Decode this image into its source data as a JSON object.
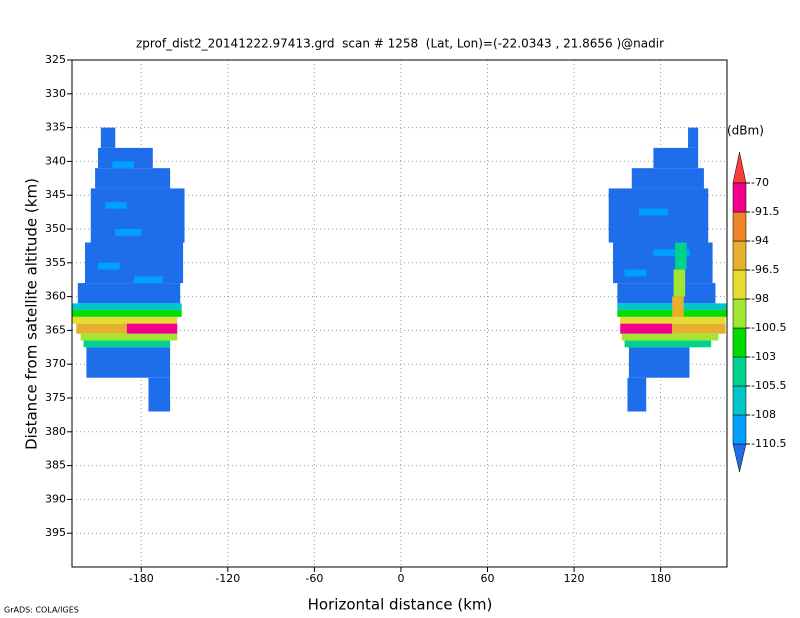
{
  "chart_data": {
    "type": "heatmap",
    "title": "zprof_dist2_20141222.97413.grd  scan # 1258  (Lat, Lon)=(-22.0343 , 21.8656 )@nadir",
    "x_label": "Horizontal distance (km)",
    "y_label": "Distance from satellite altitude (km)",
    "footer": "GrADS: COLA/IGES",
    "colorbar_label": "(dBm)",
    "xlim": [
      -228,
      226
    ],
    "xticks": [
      -180,
      -120,
      -60,
      0,
      60,
      120,
      180
    ],
    "ylim": [
      325,
      400
    ],
    "y_inverted": true,
    "yticks": [
      325,
      330,
      335,
      340,
      345,
      350,
      355,
      360,
      365,
      370,
      375,
      380,
      385,
      390,
      395
    ],
    "grid": true,
    "levels": [
      -110.5,
      -108,
      -105.5,
      -103,
      -100.5,
      -98,
      -96.5,
      -94,
      -91.5,
      -70
    ],
    "colors": [
      "#1e6eeb",
      "#00a0ff",
      "#00c8c8",
      "#00d28c",
      "#00dc00",
      "#a0e632",
      "#e6dc32",
      "#e6af2d",
      "#f08228",
      "#f0008c",
      "#fa3c3c"
    ],
    "cells": [
      {
        "x0": -208,
        "x1": -198,
        "y0": 335,
        "y1": 338,
        "value": -112
      },
      {
        "x0": -210,
        "x1": -172,
        "y0": 338,
        "y1": 341,
        "value": -112
      },
      {
        "x0": -212,
        "x1": -160,
        "y0": 341,
        "y1": 344,
        "value": -112
      },
      {
        "x0": -215,
        "x1": -150,
        "y0": 344,
        "y1": 352,
        "value": -112
      },
      {
        "x0": -219,
        "x1": -151,
        "y0": 352,
        "y1": 358,
        "value": -112
      },
      {
        "x0": -224,
        "x1": -153,
        "y0": 358,
        "y1": 361,
        "value": -112
      },
      {
        "x0": -205,
        "x1": -190,
        "y0": 346,
        "y1": 347,
        "value": -109
      },
      {
        "x0": -198,
        "x1": -180,
        "y0": 350,
        "y1": 351,
        "value": -109
      },
      {
        "x0": -210,
        "x1": -195,
        "y0": 355,
        "y1": 356,
        "value": -109
      },
      {
        "x0": -185,
        "x1": -165,
        "y0": 357,
        "y1": 358,
        "value": -109
      },
      {
        "x0": -200,
        "x1": -185,
        "y0": 340,
        "y1": 341,
        "value": -109
      },
      {
        "x0": -228,
        "x1": -152,
        "y0": 361,
        "y1": 362,
        "value": -107
      },
      {
        "x0": -228,
        "x1": -152,
        "y0": 362,
        "y1": 363,
        "value": -102
      },
      {
        "x0": -228,
        "x1": -155,
        "y0": 363,
        "y1": 364,
        "value": -97
      },
      {
        "x0": -225,
        "x1": -190,
        "y0": 364,
        "y1": 365.5,
        "value": -95
      },
      {
        "x0": -190,
        "x1": -155,
        "y0": 364,
        "y1": 365.5,
        "value": -85
      },
      {
        "x0": -222,
        "x1": -155,
        "y0": 365.5,
        "y1": 366.5,
        "value": -99
      },
      {
        "x0": -220,
        "x1": -160,
        "y0": 366.5,
        "y1": 367.5,
        "value": -104
      },
      {
        "x0": -218,
        "x1": -160,
        "y0": 367.5,
        "y1": 372,
        "value": -112
      },
      {
        "x0": -175,
        "x1": -160,
        "y0": 372,
        "y1": 377,
        "value": -112
      },
      {
        "x0": 199,
        "x1": 206,
        "y0": 335,
        "y1": 338,
        "value": -112
      },
      {
        "x0": 175,
        "x1": 206,
        "y0": 338,
        "y1": 341,
        "value": -112
      },
      {
        "x0": 160,
        "x1": 210,
        "y0": 341,
        "y1": 344,
        "value": -112
      },
      {
        "x0": 144,
        "x1": 213,
        "y0": 344,
        "y1": 352,
        "value": -112
      },
      {
        "x0": 147,
        "x1": 216,
        "y0": 352,
        "y1": 358,
        "value": -112
      },
      {
        "x0": 150,
        "x1": 218,
        "y0": 358,
        "y1": 361,
        "value": -112
      },
      {
        "x0": 165,
        "x1": 185,
        "y0": 347,
        "y1": 348,
        "value": -109
      },
      {
        "x0": 175,
        "x1": 200,
        "y0": 353,
        "y1": 354,
        "value": -109
      },
      {
        "x0": 155,
        "x1": 170,
        "y0": 356,
        "y1": 357,
        "value": -109
      },
      {
        "x0": 150,
        "x1": 226,
        "y0": 361,
        "y1": 362,
        "value": -107
      },
      {
        "x0": 150,
        "x1": 226,
        "y0": 362,
        "y1": 363,
        "value": -102
      },
      {
        "x0": 152,
        "x1": 225,
        "y0": 363,
        "y1": 364,
        "value": -97
      },
      {
        "x0": 152,
        "x1": 188,
        "y0": 364,
        "y1": 365.5,
        "value": -85
      },
      {
        "x0": 188,
        "x1": 225,
        "y0": 364,
        "y1": 365.5,
        "value": -95
      },
      {
        "x0": 153,
        "x1": 220,
        "y0": 365.5,
        "y1": 366.5,
        "value": -99
      },
      {
        "x0": 155,
        "x1": 215,
        "y0": 366.5,
        "y1": 367.5,
        "value": -104
      },
      {
        "x0": 158,
        "x1": 200,
        "y0": 367.5,
        "y1": 372,
        "value": -112
      },
      {
        "x0": 157,
        "x1": 170,
        "y0": 372,
        "y1": 377,
        "value": -112
      },
      {
        "x0": 190,
        "x1": 198,
        "y0": 352,
        "y1": 356,
        "value": -104
      },
      {
        "x0": 189,
        "x1": 197,
        "y0": 356,
        "y1": 360,
        "value": -99
      },
      {
        "x0": 188,
        "x1": 196,
        "y0": 360,
        "y1": 363,
        "value": -95
      }
    ]
  }
}
